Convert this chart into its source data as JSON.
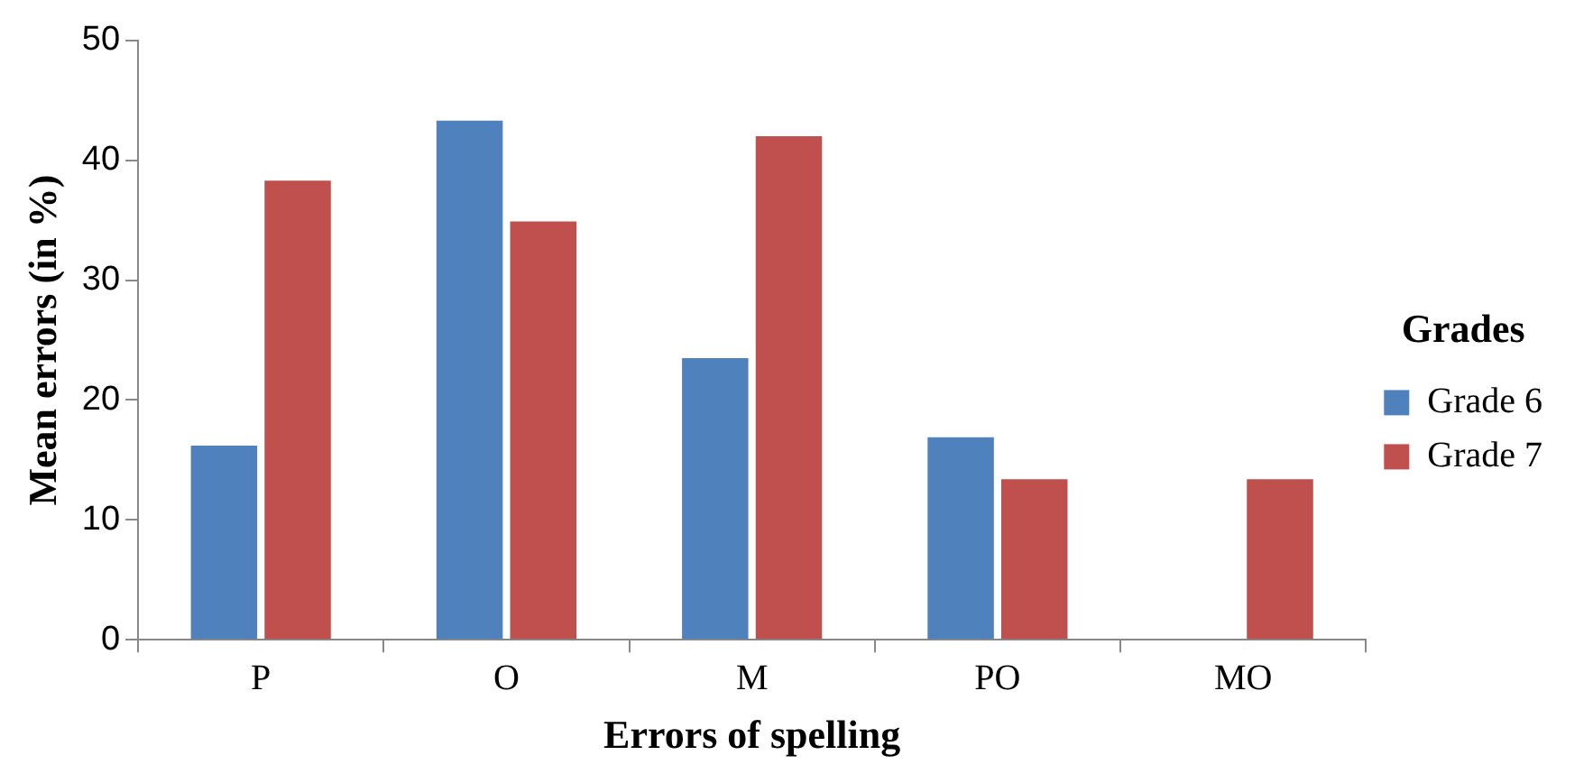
{
  "chart_data": {
    "type": "bar",
    "xlabel": "Errors of spelling",
    "ylabel": "Mean errors (in %)",
    "legend_title": "Grades",
    "categories": [
      "P",
      "O",
      "M",
      "PO",
      "MO"
    ],
    "series": [
      {
        "name": "Grade 6",
        "color": "#4f81bd",
        "values": [
          16.2,
          43.3,
          23.5,
          16.9,
          0
        ]
      },
      {
        "name": "Grade 7",
        "color": "#c0504d",
        "values": [
          38.3,
          34.9,
          42,
          13.4,
          13.4
        ]
      }
    ],
    "ylim": [
      0,
      50
    ],
    "yticks": [
      0,
      10,
      20,
      30,
      40,
      50
    ],
    "grid": false,
    "legend": "right"
  }
}
